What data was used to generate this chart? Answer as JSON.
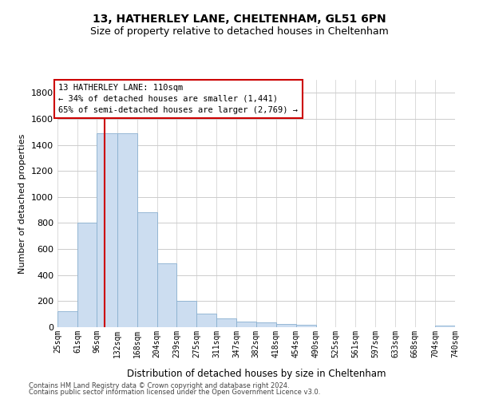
{
  "title1": "13, HATHERLEY LANE, CHELTENHAM, GL51 6PN",
  "title2": "Size of property relative to detached houses in Cheltenham",
  "xlabel": "Distribution of detached houses by size in Cheltenham",
  "ylabel": "Number of detached properties",
  "annotation_line1": "13 HATHERLEY LANE: 110sqm",
  "annotation_line2": "← 34% of detached houses are smaller (1,441)",
  "annotation_line3": "65% of semi-detached houses are larger (2,769) →",
  "footer1": "Contains HM Land Registry data © Crown copyright and database right 2024.",
  "footer2": "Contains public sector information licensed under the Open Government Licence v3.0.",
  "bar_color": "#ccddf0",
  "bar_edgecolor": "#8ab0d0",
  "redline_color": "#cc0000",
  "annotation_box_edgecolor": "#cc0000",
  "grid_color": "#cccccc",
  "background_color": "#ffffff",
  "bins": [
    25,
    61,
    96,
    132,
    168,
    204,
    239,
    275,
    311,
    347,
    382,
    418,
    454,
    490,
    525,
    561,
    597,
    633,
    668,
    704,
    740
  ],
  "bin_labels": [
    "25sqm",
    "61sqm",
    "96sqm",
    "132sqm",
    "168sqm",
    "204sqm",
    "239sqm",
    "275sqm",
    "311sqm",
    "347sqm",
    "382sqm",
    "418sqm",
    "454sqm",
    "490sqm",
    "525sqm",
    "561sqm",
    "597sqm",
    "633sqm",
    "668sqm",
    "704sqm",
    "740sqm"
  ],
  "counts": [
    125,
    800,
    1490,
    1490,
    880,
    490,
    205,
    105,
    65,
    40,
    35,
    25,
    20,
    0,
    0,
    0,
    0,
    0,
    0,
    15,
    0
  ],
  "ylim": [
    0,
    1900
  ],
  "yticks": [
    0,
    200,
    400,
    600,
    800,
    1000,
    1200,
    1400,
    1600,
    1800
  ],
  "redline_x": 110
}
